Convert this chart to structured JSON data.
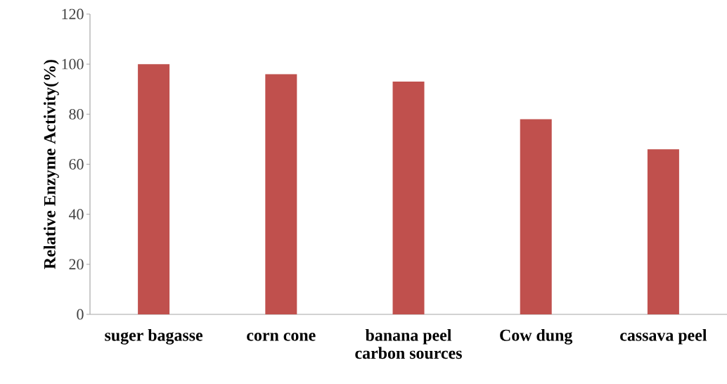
{
  "chart_data": {
    "type": "bar",
    "xlabel": "carbon sources",
    "ylabel": "Relative Enzyme Activity(%)",
    "categories": [
      "suger bagasse",
      "corn cone",
      "banana peel",
      "Cow dung",
      "cassava peel"
    ],
    "values": [
      100,
      96,
      93,
      78,
      66
    ],
    "color": "#c0504d",
    "ylim": [
      0,
      120
    ],
    "yticks": [
      0,
      20,
      40,
      60,
      80,
      100,
      120
    ]
  }
}
